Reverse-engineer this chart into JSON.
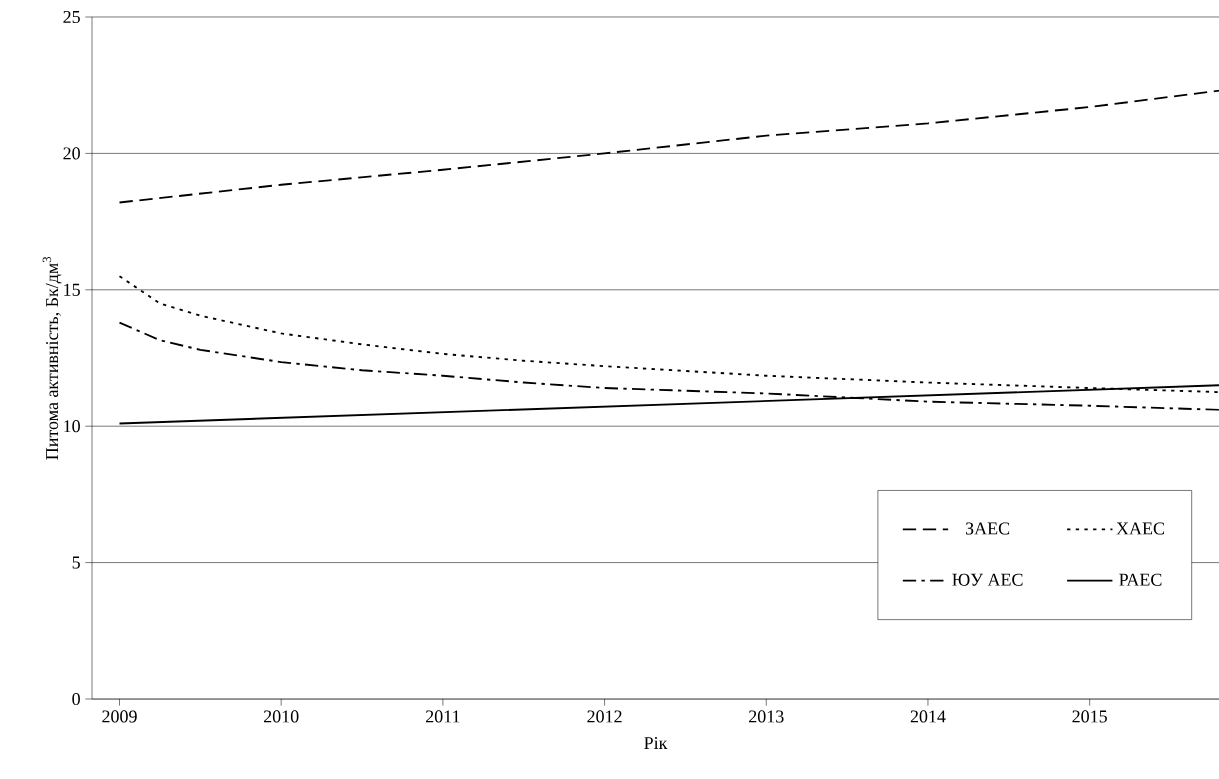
{
  "chart_data": {
    "type": "line",
    "xlabel": "Рік",
    "ylabel": "Питома активність, Бк/дм$^{3}$",
    "xlim": [
      2008.83,
      2015.8
    ],
    "xticks": [
      2009,
      2010,
      2011,
      2012,
      2013,
      2014,
      2015
    ],
    "ylim": [
      0,
      25
    ],
    "yticks": [
      0,
      5,
      10,
      15,
      20,
      25
    ],
    "grid": "y",
    "legend": "bottom right",
    "marker": "none",
    "series": [
      {
        "name": "ЗАЕС",
        "color": "#000000",
        "line_style": "dashed",
        "x": [
          2009,
          2010,
          2011,
          2012,
          2013,
          2014,
          2015,
          2015.8
        ],
        "values": [
          18.2,
          18.85,
          19.4,
          20.0,
          20.65,
          21.1,
          21.7,
          22.3
        ]
      },
      {
        "name": "ХАЕС",
        "color": "#000000",
        "line_style": "dotted",
        "x": [
          2009,
          2009.25,
          2009.5,
          2010,
          2010.5,
          2011,
          2011.5,
          2012,
          2013,
          2014,
          2015,
          2015.8
        ],
        "values": [
          15.5,
          14.5,
          14.05,
          13.4,
          13.0,
          12.65,
          12.4,
          12.2,
          11.85,
          11.6,
          11.4,
          11.25
        ]
      },
      {
        "name": "ЮУ АЕС",
        "color": "#000000",
        "line_style": "dashdot",
        "x": [
          2009,
          2009.25,
          2009.5,
          2010,
          2010.5,
          2011,
          2011.5,
          2012,
          2013,
          2014,
          2015,
          2015.8
        ],
        "values": [
          13.8,
          13.15,
          12.8,
          12.35,
          12.05,
          11.85,
          11.6,
          11.4,
          11.2,
          10.9,
          10.75,
          10.6
        ]
      },
      {
        "name": "РАЕС",
        "color": "#000000",
        "line_style": "solid",
        "x": [
          2009,
          2015.8
        ],
        "values": [
          10.1,
          11.5
        ]
      }
    ]
  }
}
